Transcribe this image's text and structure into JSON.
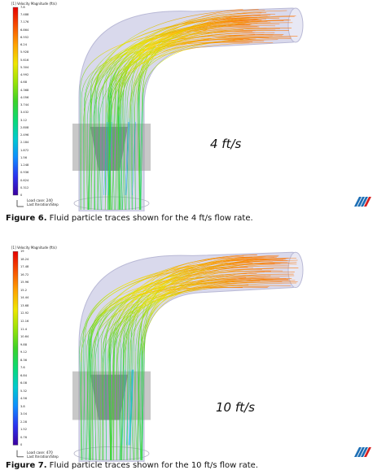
{
  "figures": [
    {
      "colorbar_title": "[1] Velocity Magnitude (ft/s)",
      "ticks": [
        "7.8",
        "7.488",
        "7.176",
        "6.864",
        "6.552",
        "6.24",
        "5.928",
        "5.616",
        "5.304",
        "4.992",
        "4.68",
        "4.368",
        "4.056",
        "3.744",
        "3.432",
        "3.12",
        "2.808",
        "2.496",
        "2.184",
        "1.872",
        "1.56",
        "1.248",
        "0.936",
        "0.624",
        "0.312",
        "0"
      ],
      "load_case": "Load case: 240",
      "iteration": "Last Iteration/Step",
      "speed_label": "4 ft/s",
      "caption_label": "Figure 6.",
      "caption_text": " Fluid particle traces shown for the 4 ft/s flow rate."
    },
    {
      "colorbar_title": "[1] Velocity Magnitude (ft/s)",
      "ticks": [
        "19",
        "18.24",
        "17.48",
        "16.72",
        "15.96",
        "15.2",
        "14.44",
        "13.68",
        "12.92",
        "12.16",
        "11.4",
        "10.64",
        "9.88",
        "9.12",
        "8.36",
        "7.6",
        "6.84",
        "6.08",
        "5.32",
        "4.56",
        "3.8",
        "3.04",
        "2.28",
        "1.52",
        "0.76",
        "0"
      ],
      "load_case": "Load case: 470",
      "iteration": "Last Iteration/Step",
      "speed_label": "10 ft/s",
      "caption_label": "Figure 7.",
      "caption_text": " Fluid particle traces shown for the 10 ft/s flow rate."
    }
  ],
  "colors": {
    "pipe": "#d9d9ec",
    "pipe_edge": "#b9b9d6",
    "housing": "#9a9a9a",
    "logo": "#1f6fb5"
  },
  "logo_icon": "stripes-logo-icon"
}
